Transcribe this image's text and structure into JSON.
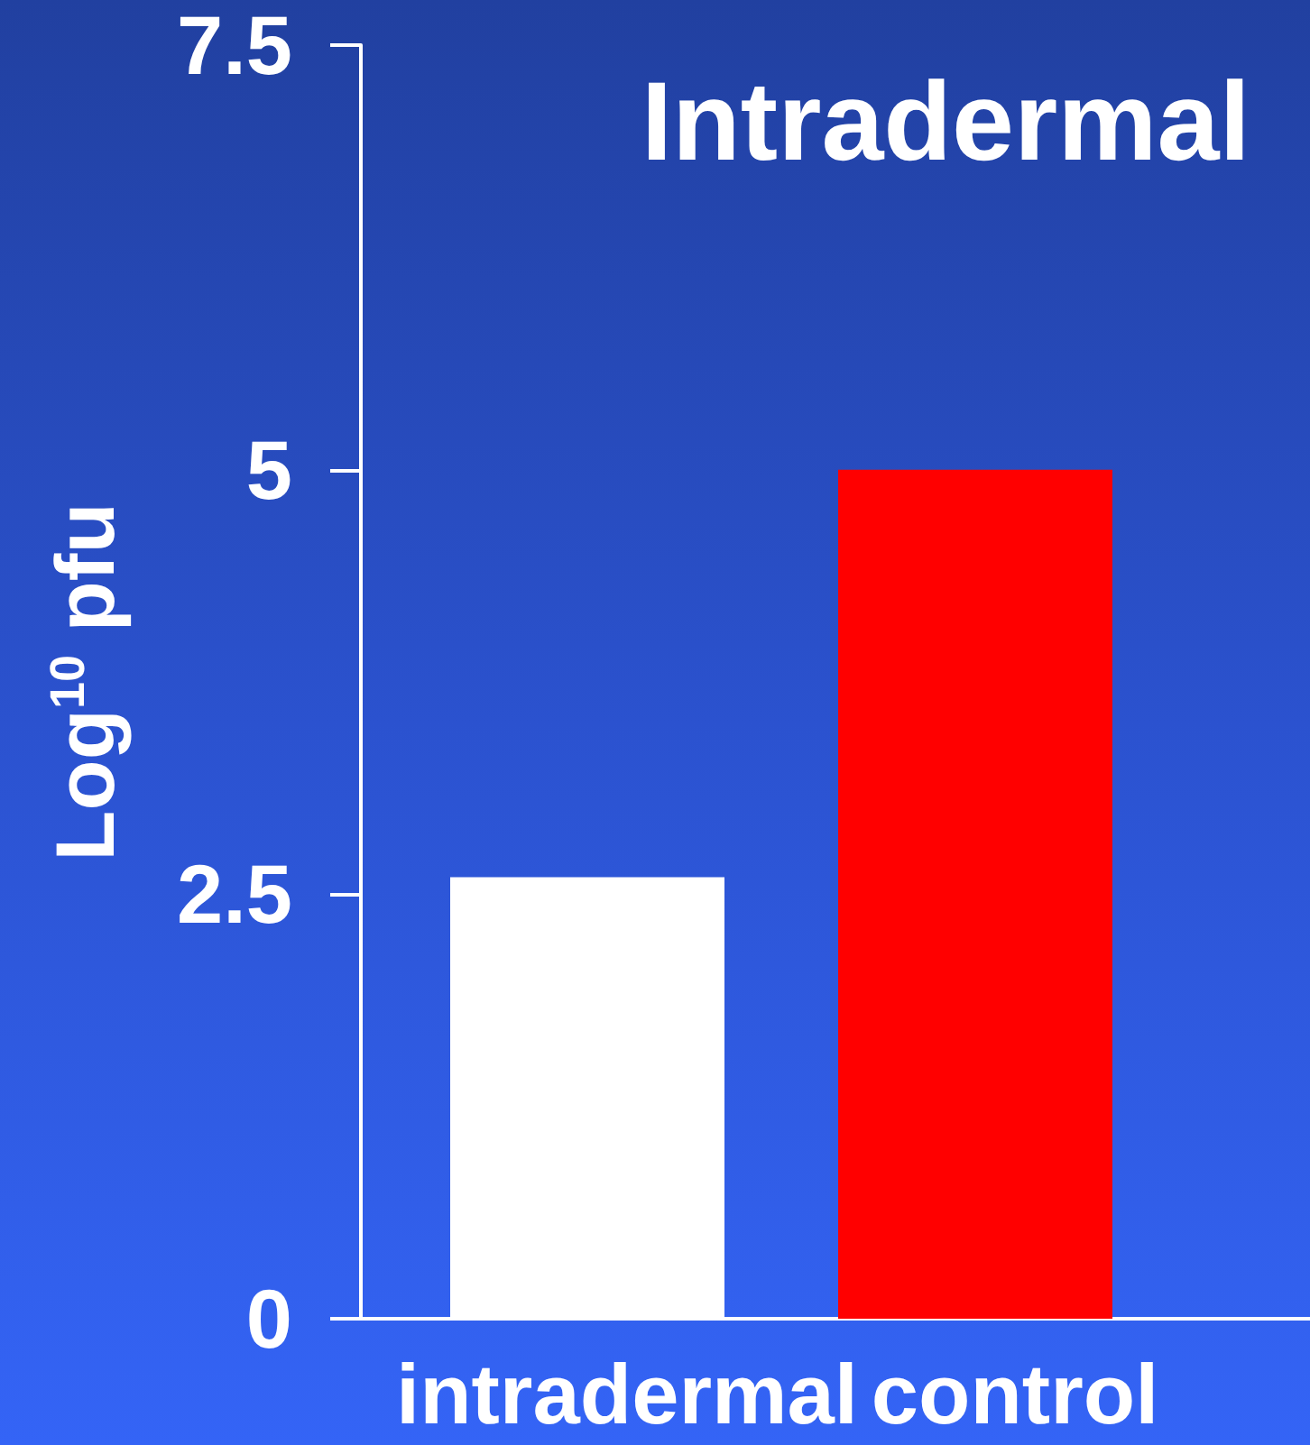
{
  "chart_data": {
    "type": "bar",
    "title": "Intradermal",
    "ylabel": "Log$^{10}$ pfu",
    "categories": [
      "intradermal",
      "control"
    ],
    "values": [
      2.6,
      5
    ],
    "colors": [
      "#ffffff",
      "#ff0000"
    ],
    "ylim": [
      0,
      7.5
    ],
    "yticks": [
      0,
      2.5,
      5,
      7.5
    ]
  }
}
